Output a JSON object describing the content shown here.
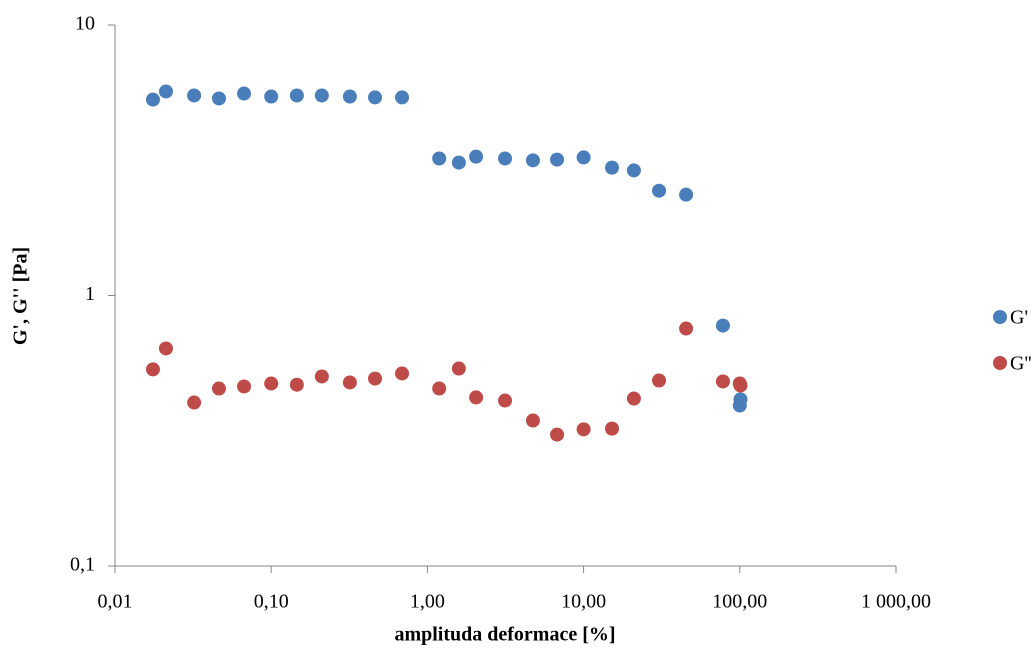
{
  "chart_data": {
    "type": "scatter",
    "xlabel": "amplituda deformace [%]",
    "ylabel": "G', G'' [Pa]",
    "xlog": true,
    "ylog": true,
    "grid": false,
    "legend": "right",
    "xlim": [
      0.01,
      1000
    ],
    "ylim": [
      0.1,
      10
    ],
    "xticks": [
      {
        "value": 0.01,
        "label": "0,01"
      },
      {
        "value": 0.1,
        "label": "0,10"
      },
      {
        "value": 1,
        "label": "1,00"
      },
      {
        "value": 10,
        "label": "10,00"
      },
      {
        "value": 100,
        "label": "100,00"
      },
      {
        "value": 1000,
        "label": "1 000,00"
      }
    ],
    "yticks": [
      {
        "value": 0.1,
        "label": "0,1"
      },
      1,
      10
    ],
    "series": [
      {
        "name": "G'",
        "color": "#4a7ebb",
        "x": [
          0.0175,
          0.0212,
          0.0321,
          0.0463,
          0.067,
          0.1,
          0.146,
          0.211,
          0.319,
          0.462,
          0.688,
          1.19,
          1.59,
          2.05,
          3.14,
          4.74,
          6.76,
          10,
          15.2,
          21.0,
          30.4,
          45.3,
          78,
          100,
          101
        ],
        "values": [
          5.3,
          5.68,
          5.49,
          5.35,
          5.58,
          5.44,
          5.49,
          5.49,
          5.44,
          5.4,
          5.4,
          3.21,
          3.1,
          3.26,
          3.21,
          3.16,
          3.18,
          3.24,
          2.97,
          2.9,
          2.44,
          2.36,
          0.774,
          0.392,
          0.413
        ]
      },
      {
        "name": "G''",
        "color": "#be4b48",
        "x": [
          0.0175,
          0.0212,
          0.0321,
          0.0463,
          0.067,
          0.1,
          0.146,
          0.211,
          0.319,
          0.462,
          0.688,
          1.19,
          1.59,
          2.05,
          3.14,
          4.74,
          6.76,
          10,
          15.2,
          21.0,
          30.4,
          45.3,
          78,
          100,
          101
        ],
        "values": [
          0.533,
          0.637,
          0.402,
          0.453,
          0.461,
          0.473,
          0.468,
          0.502,
          0.477,
          0.493,
          0.515,
          0.453,
          0.537,
          0.42,
          0.409,
          0.345,
          0.306,
          0.32,
          0.322,
          0.416,
          0.485,
          0.755,
          0.481,
          0.473,
          0.465
        ]
      }
    ]
  }
}
